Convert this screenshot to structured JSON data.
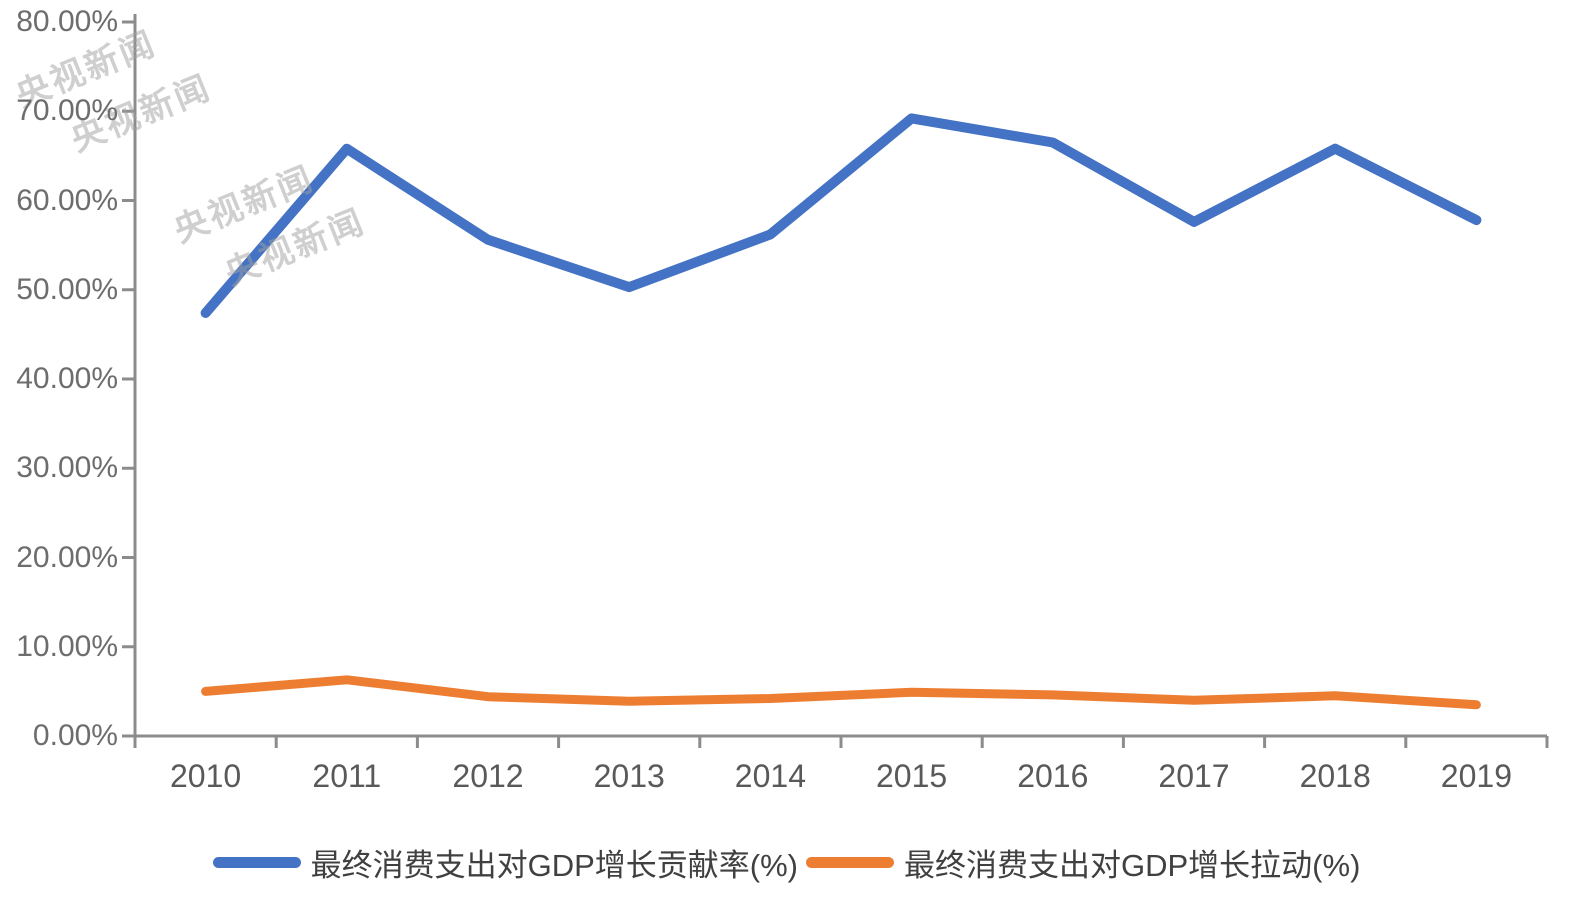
{
  "chart_data": {
    "type": "line",
    "title": "",
    "xlabel": "",
    "ylabel": "",
    "categories": [
      "2010",
      "2011",
      "2012",
      "2013",
      "2014",
      "2015",
      "2016",
      "2017",
      "2018",
      "2019"
    ],
    "series": [
      {
        "name": "最终消费支出对GDP增长贡献率(%)",
        "color": "#4472C4",
        "stroke_width": 10,
        "values": [
          47.4,
          65.8,
          55.6,
          50.3,
          56.2,
          69.2,
          66.5,
          57.6,
          65.8,
          57.8
        ]
      },
      {
        "name": "最终消费支出对GDP增长拉动(%)",
        "color": "#ED7D31",
        "stroke_width": 9,
        "values": [
          5.0,
          6.3,
          4.4,
          3.9,
          4.2,
          4.9,
          4.6,
          4.0,
          4.5,
          3.5
        ]
      }
    ],
    "ylim": [
      0,
      80
    ],
    "y_tick_step": 10,
    "y_tick_labels_top_to_bottom": [
      "80.00%",
      "70.00%",
      "60.00%",
      "50.00%",
      "40.00%",
      "30.00%",
      "20.00%",
      "10.00%",
      "0.00%"
    ],
    "grid": false,
    "legend_position": "bottom",
    "axis_color": "#8C8C8C",
    "y_label_color": "#6d6d6d",
    "x_label_color": "#595959",
    "legend_text_color": "#404040"
  },
  "watermark": {
    "text": "央视新闻"
  }
}
